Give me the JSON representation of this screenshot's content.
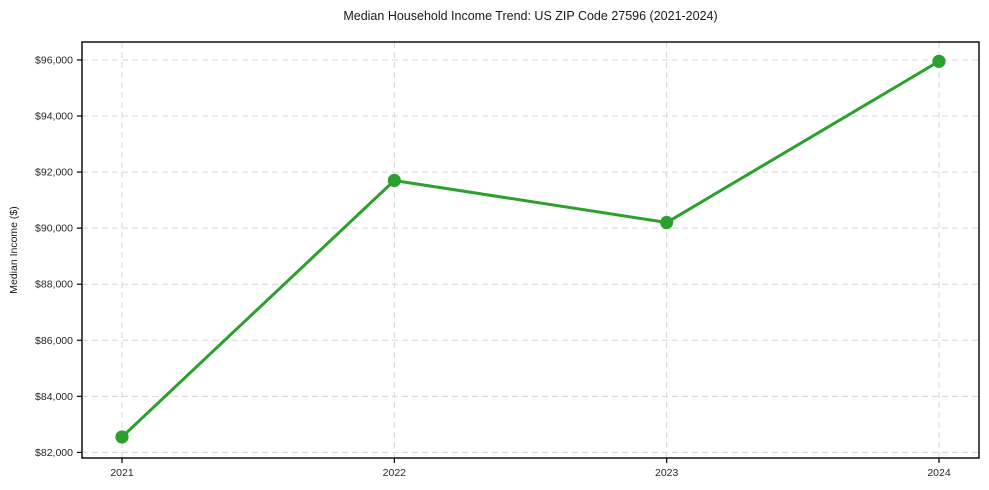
{
  "chart_data": {
    "type": "line",
    "title": "Median Household Income Trend: US ZIP Code 27596 (2021-2024)",
    "xlabel": "",
    "ylabel": "Median Income ($)",
    "categories": [
      "2021",
      "2022",
      "2023",
      "2024"
    ],
    "values": [
      82550,
      91700,
      90200,
      95950
    ],
    "y_tick_values": [
      82000,
      84000,
      86000,
      88000,
      90000,
      92000,
      94000,
      96000
    ],
    "y_tick_labels": [
      "$82,000",
      "$84,000",
      "$86,000",
      "$88,000",
      "$90,000",
      "$92,000",
      "$94,000",
      "$96,000"
    ],
    "ylim": [
      81800,
      96640
    ],
    "grid": true,
    "grid_style": "dashed",
    "legend": false,
    "marker": "circle",
    "colors": {
      "line": "#2ca02c",
      "marker": "#2ca02c",
      "grid": "#d4d4d4",
      "axis": "#000000",
      "text": "#262626",
      "background": "#ffffff"
    }
  }
}
